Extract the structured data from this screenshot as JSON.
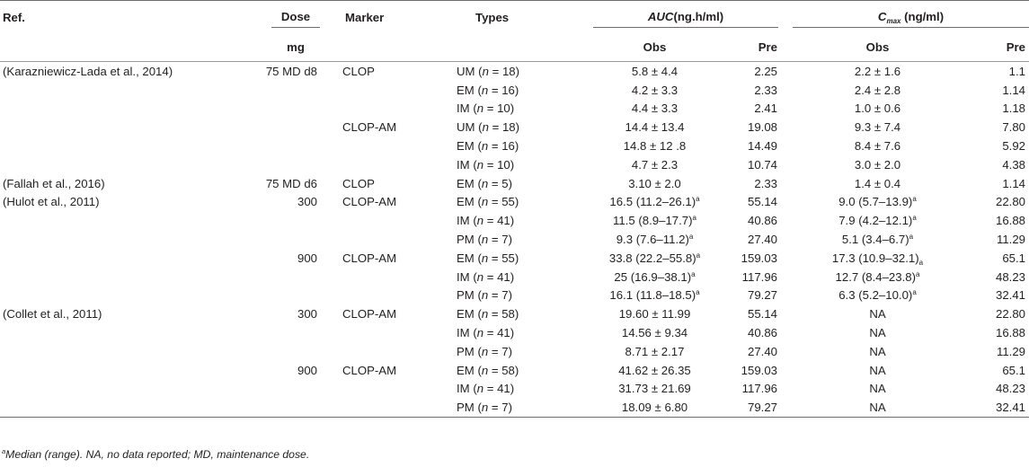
{
  "headers": {
    "ref": "Ref.",
    "dose": "Dose",
    "dose_unit": "mg",
    "marker": "Marker",
    "types": "Types",
    "auc_symbol": "AUC",
    "auc_unit": "(ng.h/ml)",
    "cmax_symbol": "C",
    "cmax_subscript": "max",
    "cmax_unit": " (ng/ml)",
    "obs": "Obs",
    "pre": "Pre"
  },
  "rows": [
    {
      "ref": "(Karazniewicz-Lada et al., 2014)",
      "dose": "75 MD d8",
      "marker": "CLOP",
      "type": "UM",
      "n": "18",
      "auc_obs": "5.8 ± 4.4",
      "auc_obs_sup": "",
      "auc_pre": "2.25",
      "cmax_obs": "2.2 ± 1.6",
      "cmax_obs_sup": "",
      "cmax_pre": "1.1"
    },
    {
      "ref": "",
      "dose": "",
      "marker": "",
      "type": "EM",
      "n": "16",
      "auc_obs": "4.2 ± 3.3",
      "auc_obs_sup": "",
      "auc_pre": "2.33",
      "cmax_obs": "2.4 ± 2.8",
      "cmax_obs_sup": "",
      "cmax_pre": "1.14"
    },
    {
      "ref": "",
      "dose": "",
      "marker": "",
      "type": "IM",
      "n": "10",
      "auc_obs": "4.4 ± 3.3",
      "auc_obs_sup": "",
      "auc_pre": "2.41",
      "cmax_obs": "1.0 ± 0.6",
      "cmax_obs_sup": "",
      "cmax_pre": "1.18"
    },
    {
      "ref": "",
      "dose": "",
      "marker": "CLOP-AM",
      "type": "UM",
      "n": "18",
      "auc_obs": "14.4 ± 13.4",
      "auc_obs_sup": "",
      "auc_pre": "19.08",
      "cmax_obs": "9.3 ± 7.4",
      "cmax_obs_sup": "",
      "cmax_pre": "7.80"
    },
    {
      "ref": "",
      "dose": "",
      "marker": "",
      "type": "EM",
      "n": "16",
      "auc_obs": "14.8 ± 12 .8",
      "auc_obs_sup": "",
      "auc_pre": "14.49",
      "cmax_obs": "8.4 ± 7.6",
      "cmax_obs_sup": "",
      "cmax_pre": "5.92"
    },
    {
      "ref": "",
      "dose": "",
      "marker": "",
      "type": "IM",
      "n": "10",
      "auc_obs": "4.7 ± 2.3",
      "auc_obs_sup": "",
      "auc_pre": "10.74",
      "cmax_obs": "3.0 ± 2.0",
      "cmax_obs_sup": "",
      "cmax_pre": "4.38"
    },
    {
      "ref": "(Fallah et al., 2016)",
      "dose": "75 MD d6",
      "marker": "CLOP",
      "type": "EM",
      "n": "5",
      "auc_obs": "3.10 ± 2.0",
      "auc_obs_sup": "",
      "auc_pre": "2.33",
      "cmax_obs": "1.4 ± 0.4",
      "cmax_obs_sup": "",
      "cmax_pre": "1.14"
    },
    {
      "ref": "(Hulot et al., 2011)",
      "dose": "300",
      "marker": "CLOP-AM",
      "type": "EM",
      "n": "55",
      "auc_obs": "16.5 (11.2–26.1)",
      "auc_obs_sup": "a",
      "auc_pre": "55.14",
      "cmax_obs": "9.0 (5.7–13.9)",
      "cmax_obs_sup": "a",
      "cmax_pre": "22.80"
    },
    {
      "ref": "",
      "dose": "",
      "marker": "",
      "type": "IM",
      "n": "41",
      "auc_obs": "11.5 (8.9–17.7)",
      "auc_obs_sup": "a",
      "auc_pre": "40.86",
      "cmax_obs": "7.9 (4.2–12.1)",
      "cmax_obs_sup": "a",
      "cmax_pre": "16.88"
    },
    {
      "ref": "",
      "dose": "",
      "marker": "",
      "type": "PM",
      "n": "7",
      "auc_obs": "9.3 (7.6–11.2)",
      "auc_obs_sup": "a",
      "auc_pre": "27.40",
      "cmax_obs": "5.1 (3.4–6.7)",
      "cmax_obs_sup": "a",
      "cmax_pre": "11.29"
    },
    {
      "ref": "",
      "dose": "900",
      "marker": "CLOP-AM",
      "type": "EM",
      "n": "55",
      "auc_obs": "33.8 (22.2–55.8)",
      "auc_obs_sup": "a",
      "auc_pre": "159.03",
      "cmax_obs": "17.3 (10.9–32.1)",
      "cmax_obs_sub": "a",
      "cmax_pre": "65.1"
    },
    {
      "ref": "",
      "dose": "",
      "marker": "",
      "type": "IM",
      "n": "41",
      "auc_obs": "25 (16.9–38.1)",
      "auc_obs_sup": "a",
      "auc_pre": "117.96",
      "cmax_obs": "12.7 (8.4–23.8)",
      "cmax_obs_sup": "a",
      "cmax_pre": "48.23"
    },
    {
      "ref": "",
      "dose": "",
      "marker": "",
      "type": "PM",
      "n": "7",
      "auc_obs": "16.1 (11.8–18.5)",
      "auc_obs_sup": "a",
      "auc_pre": "79.27",
      "cmax_obs": "6.3 (5.2–10.0)",
      "cmax_obs_sup": "a",
      "cmax_pre": "32.41"
    },
    {
      "ref": "(Collet et al., 2011)",
      "dose": "300",
      "marker": "CLOP-AM",
      "type": "EM",
      "n": "58",
      "auc_obs": "19.60 ± 11.99",
      "auc_obs_sup": "",
      "auc_pre": "55.14",
      "cmax_obs": "NA",
      "cmax_obs_sup": "",
      "cmax_pre": "22.80"
    },
    {
      "ref": "",
      "dose": "",
      "marker": "",
      "type": "IM",
      "n": "41",
      "auc_obs": "14.56 ± 9.34",
      "auc_obs_sup": "",
      "auc_pre": "40.86",
      "cmax_obs": "NA",
      "cmax_obs_sup": "",
      "cmax_pre": "16.88"
    },
    {
      "ref": "",
      "dose": "",
      "marker": "",
      "type": "PM",
      "n": "7",
      "auc_obs": "8.71 ± 2.17",
      "auc_obs_sup": "",
      "auc_pre": "27.40",
      "cmax_obs": "NA",
      "cmax_obs_sup": "",
      "cmax_pre": "11.29"
    },
    {
      "ref": "",
      "dose": "900",
      "marker": "CLOP-AM",
      "type": "EM",
      "n": "58",
      "auc_obs": "41.62 ± 26.35",
      "auc_obs_sup": "",
      "auc_pre": "159.03",
      "cmax_obs": "NA",
      "cmax_obs_sup": "",
      "cmax_pre": "65.1"
    },
    {
      "ref": "",
      "dose": "",
      "marker": "",
      "type": "IM",
      "n": "41",
      "auc_obs": "31.73 ± 21.69",
      "auc_obs_sup": "",
      "auc_pre": "117.96",
      "cmax_obs": "NA",
      "cmax_obs_sup": "",
      "cmax_pre": "48.23"
    },
    {
      "ref": "",
      "dose": "",
      "marker": "",
      "type": "PM",
      "n": "7",
      "auc_obs": "18.09 ± 6.80",
      "auc_obs_sup": "",
      "auc_pre": "79.27",
      "cmax_obs": "NA",
      "cmax_obs_sup": "",
      "cmax_pre": "32.41"
    }
  ],
  "footnote": {
    "marker": "a",
    "text": "Median (range). NA, no data reported; MD, maintenance dose."
  }
}
